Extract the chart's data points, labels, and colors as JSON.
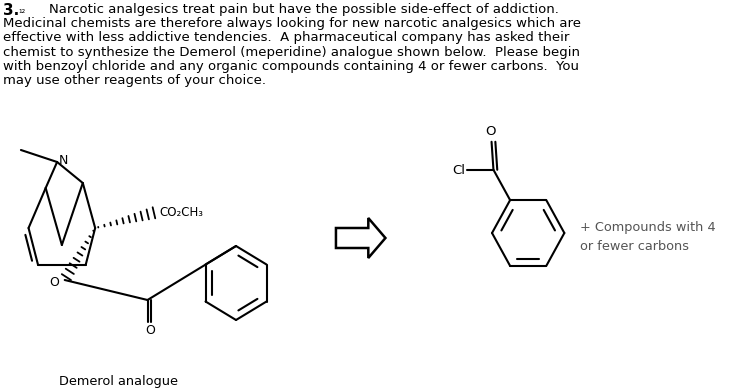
{
  "bg_color": "#ffffff",
  "line_color": "#000000",
  "para_lines": [
    "Narcotic analgesics treat pain but have the possible side-effect of addiction.",
    "Medicinal chemists are therefore always looking for new narcotic analgesics which are",
    "effective with less addictive tendencies.  A pharmaceutical company has asked their",
    "chemist to synthesize the Demerol (meperidine) analogue shown below.  Please begin",
    "with benzoyl chloride and any organic compounds containing 4 or fewer carbons.  You",
    "may use other reagents of your choice."
  ],
  "label_demerol": "Demerol analogue",
  "label_compounds": "+ Compounds with 4\nor fewer carbons",
  "co2ch3": "CO₂CH₃",
  "n_label": "N",
  "o_label": "O",
  "cl_label": "Cl",
  "text_fontsize": 9.5,
  "chem_lw": 1.5
}
